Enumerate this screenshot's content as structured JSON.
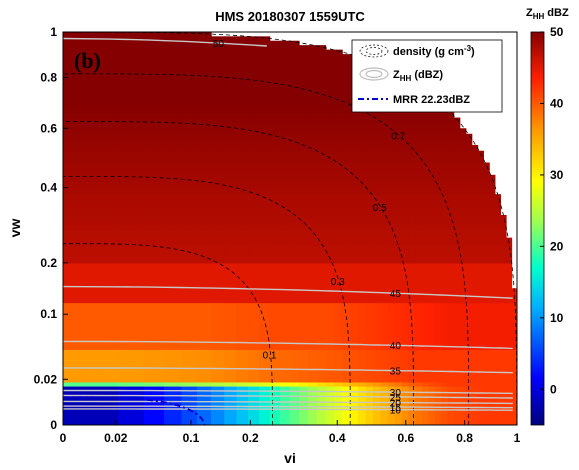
{
  "chart_data": {
    "type": "heatmap",
    "title": "HMS 20180307  1559UTC",
    "panel_label": "(b)",
    "xlabel": "vi",
    "ylabel": "vw",
    "x_ticks": [
      0,
      0.02,
      0.1,
      0.2,
      0.4,
      0.6,
      0.8,
      1
    ],
    "y_ticks": [
      0,
      0.02,
      0.1,
      0.2,
      0.4,
      0.6,
      0.8,
      1
    ],
    "xlim": [
      0,
      1
    ],
    "ylim": [
      0,
      1
    ],
    "colorbar": {
      "title_main": "Z",
      "title_sub": "HH",
      "title_unit": "dBZ",
      "ticks": [
        0,
        10,
        20,
        30,
        40,
        50
      ],
      "range": [
        -5,
        50
      ],
      "colormap": "jet"
    },
    "legend": {
      "placement": "top-right",
      "entries": [
        {
          "label": "density (g cm",
          "sup": "-3",
          "tail": ")"
        },
        {
          "label": "Z",
          "sub": "HH",
          "tail": " (dBZ)"
        },
        {
          "label": "MRR 22.23dBZ"
        }
      ]
    },
    "density_contours": {
      "style": "black dashed",
      "levels": [
        0.1,
        0.3,
        0.5,
        0.7,
        0.9
      ],
      "labels": [
        "0.1",
        "0.3",
        "0.5",
        "0.7",
        "0.9"
      ]
    },
    "zhh_contours": {
      "style": "light gray solid",
      "levels": [
        10,
        15,
        20,
        25,
        30,
        35,
        40,
        45,
        50
      ],
      "labels": [
        "10",
        "15",
        "20",
        "25",
        "30",
        "35",
        "40",
        "45",
        "50"
      ]
    },
    "mrr_contour": {
      "value": 22.23,
      "style": "blue dash-dot"
    },
    "domain_boundary": "vi^2 + vw^2 <= 1 (quarter circle)",
    "zhh_rows": [
      {
        "vw_from": 0.0,
        "vw_to": 0.015,
        "zhh_profile": [
          -3,
          8,
          18,
          26,
          33,
          38,
          41,
          42,
          42
        ]
      },
      {
        "vw_from": 0.015,
        "vw_to": 0.018,
        "zhh_profile": [
          20,
          24,
          28,
          32,
          36,
          40,
          42,
          42,
          42
        ]
      },
      {
        "vw_from": 0.018,
        "vw_to": 0.05,
        "zhh_profile": [
          36,
          37,
          39,
          40,
          41,
          42,
          42,
          42,
          42
        ]
      },
      {
        "vw_from": 0.05,
        "vw_to": 0.12,
        "zhh_profile": [
          40,
          40,
          41,
          41,
          42,
          43,
          44,
          44,
          44
        ]
      },
      {
        "vw_from": 0.12,
        "vw_to": 0.2,
        "zhh_profile": [
          45,
          45,
          45,
          45,
          45,
          45,
          45,
          45,
          45
        ]
      },
      {
        "vw_from": 0.2,
        "vw_to": 1.0,
        "zhh_profile": [
          47,
          47,
          47,
          47,
          47,
          47,
          47,
          47,
          47
        ]
      }
    ]
  }
}
